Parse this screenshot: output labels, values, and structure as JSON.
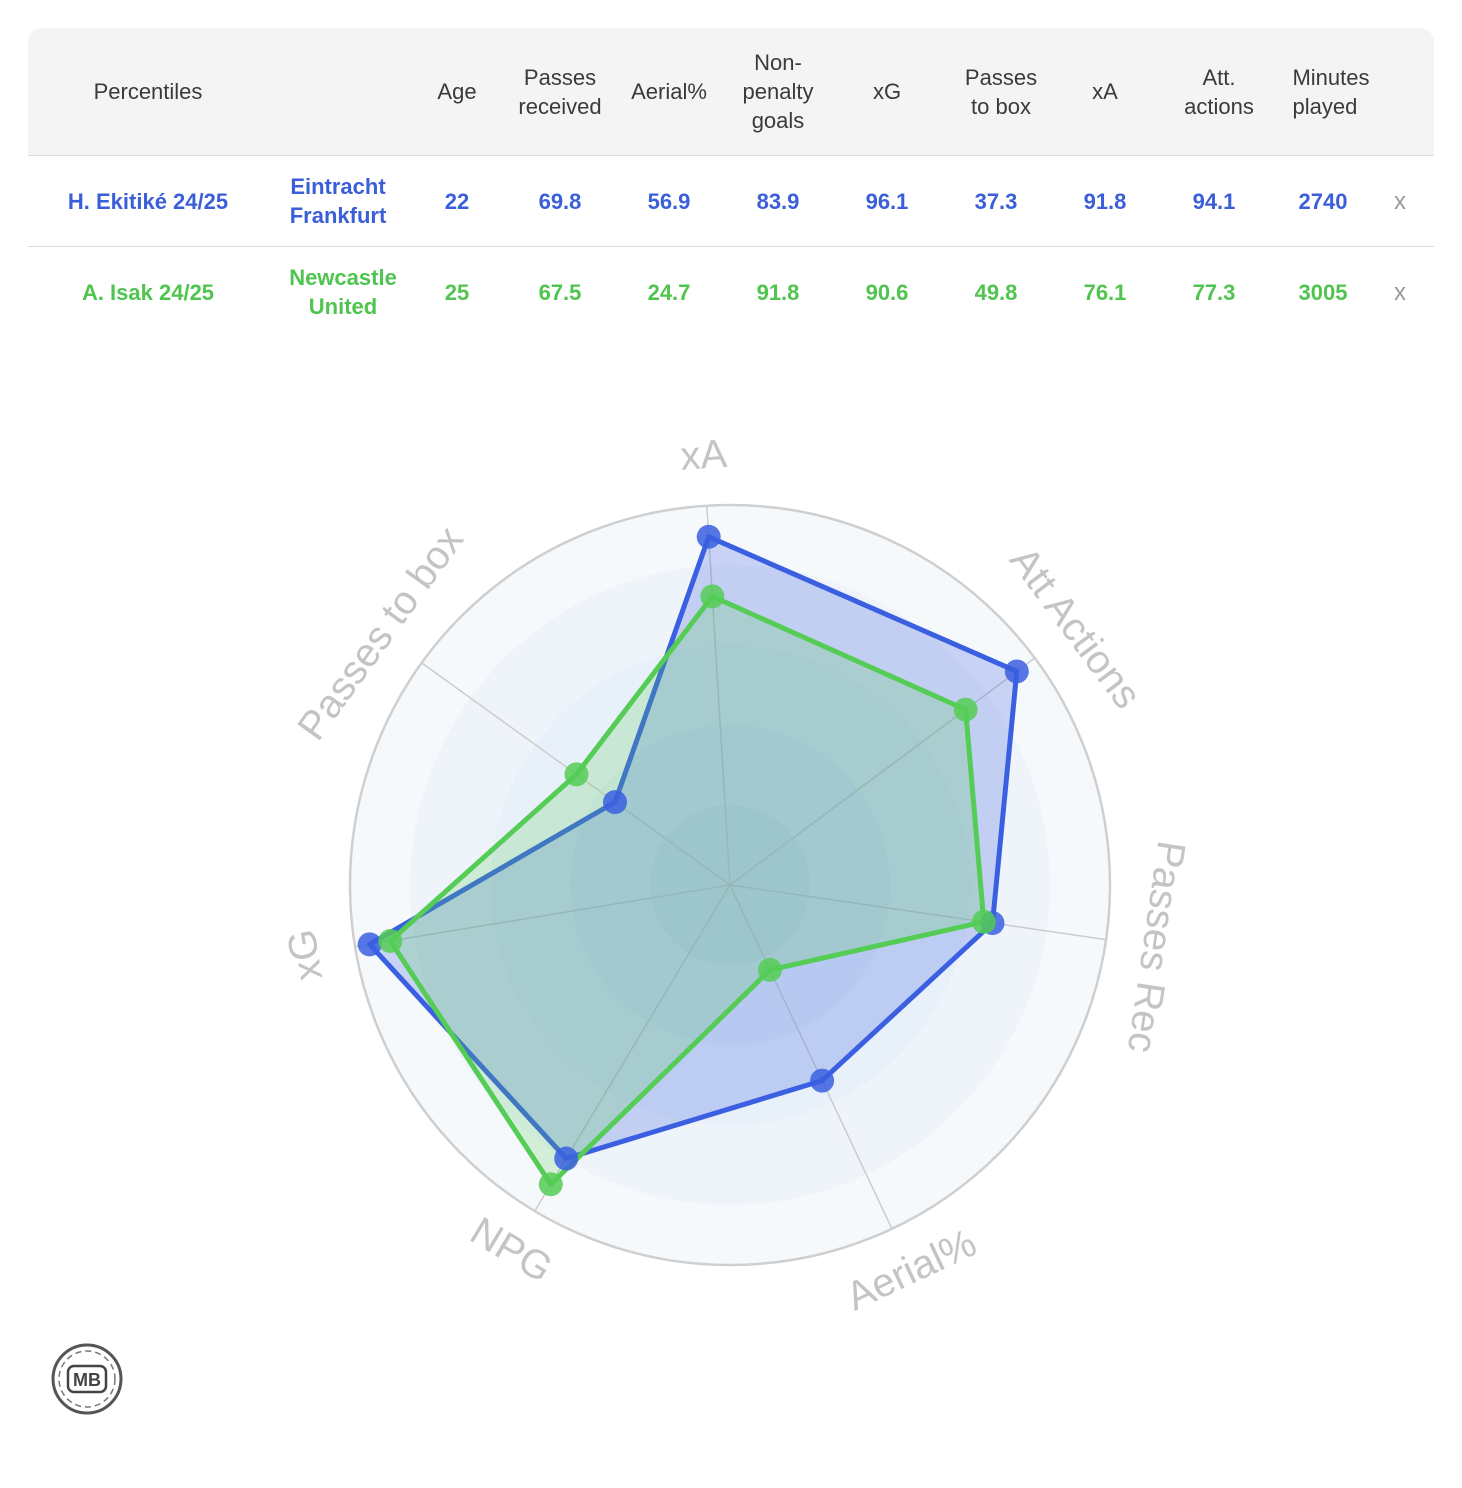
{
  "table": {
    "headers": {
      "percentiles": "Percentiles",
      "age": "Age",
      "passes_received": [
        "Passes",
        "received"
      ],
      "aerial": "Aerial%",
      "npg": [
        "Non-",
        "penalty",
        "goals"
      ],
      "xg": "xG",
      "passes_to_box": [
        "Passes",
        "to box"
      ],
      "xa": "xA",
      "att_actions": [
        "Att.",
        "actions"
      ],
      "minutes": [
        "Minutes",
        "played"
      ]
    },
    "rows": [
      {
        "player": "H. Ekitiké 24/25",
        "team": [
          "Eintracht",
          "Frankfurt"
        ],
        "age": "22",
        "passes_received": "69.8",
        "aerial": "56.9",
        "npg": "83.9",
        "xg": "96.1",
        "passes_to_box": "37.3",
        "xa": "91.8",
        "att_actions": "94.1",
        "minutes": "2740",
        "remove": "x"
      },
      {
        "player": "A. Isak 24/25",
        "team": [
          "Newcastle",
          "United"
        ],
        "age": "25",
        "passes_received": "67.5",
        "aerial": "24.7",
        "npg": "91.8",
        "xg": "90.6",
        "passes_to_box": "49.8",
        "xa": "76.1",
        "att_actions": "77.3",
        "minutes": "3005",
        "remove": "x"
      }
    ]
  },
  "chart_data": {
    "type": "radar",
    "axes": [
      "xA",
      "Att Actions",
      "Passes Rec",
      "Aerial%",
      "NPG",
      "xG",
      "Passes to box"
    ],
    "range": [
      0,
      100
    ],
    "series": [
      {
        "name": "H. Ekitiké 24/25",
        "color": "#3a5fe0",
        "values": [
          91.8,
          94.1,
          69.8,
          56.9,
          83.9,
          96.1,
          37.3
        ]
      },
      {
        "name": "A. Isak 24/25",
        "color": "#55cc55",
        "values": [
          76.1,
          77.3,
          67.5,
          24.7,
          91.8,
          90.6,
          49.8
        ]
      }
    ]
  },
  "colors": {
    "blue": "#3a5fd9",
    "green": "#4fc44f",
    "header_bg": "#f4f4f4",
    "grid": "#cfcfcf"
  },
  "logo": {
    "text": "MB",
    "icon": "football-logo-icon"
  }
}
